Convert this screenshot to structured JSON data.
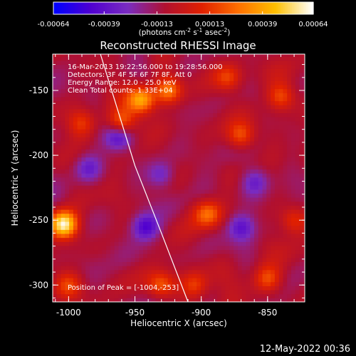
{
  "colorbar": {
    "tick_labels": [
      "-0.00064",
      "-0.00039",
      "-0.00013",
      "0.00013",
      "0.00039",
      "0.00064"
    ],
    "tick_values": [
      -0.00064,
      -0.00039,
      -0.00013,
      0.00013,
      0.00039,
      0.00064
    ],
    "range": [
      -0.00064,
      0.00064
    ],
    "unit_label": "(photons cm",
    "unit_exp1": "-2",
    "unit_mid": " s",
    "unit_exp2": "-1",
    "unit_tail": " asec",
    "unit_exp3": "-2",
    "unit_close": ")",
    "colors": [
      "#0000ff",
      "#5000d0",
      "#7a2cc0",
      "#b01030",
      "#e02000",
      "#ff7000",
      "#ffc000",
      "#ffffff"
    ]
  },
  "chart_data": {
    "type": "heatmap",
    "title": "Reconstructed RHESSI Image",
    "xlabel": "Heliocentric X (arcsec)",
    "ylabel": "Heliocentric Y (arcsec)",
    "xlim": [
      -1012,
      -822
    ],
    "ylim": [
      -313,
      -122
    ],
    "x_ticks": [
      -1000,
      -950,
      -900,
      -850
    ],
    "x_tick_labels": [
      "-1000",
      "-950",
      "-900",
      "-850"
    ],
    "y_ticks": [
      -300,
      -250,
      -200,
      -150
    ],
    "y_tick_labels": [
      "-300",
      "-250",
      "-200",
      "-150"
    ],
    "info_lines": [
      "16-Mar-2013 19:22:56.000 to 19:28:56.000",
      "Detectors: 3F 4F 5F 6F 7F 8F, Att 0",
      "Energy Range: 12.0 - 25.0 keV",
      "Clean    Total counts: 1.33E+04"
    ],
    "peak_text": "Position of Peak = [-1004,-253]",
    "peak": [
      -1004,
      -253
    ],
    "limb_points": [
      [
        -976,
        -122
      ],
      [
        -950,
        -208
      ],
      [
        -930,
        -260
      ],
      [
        -910,
        -313
      ]
    ],
    "hotspots": [
      {
        "x": -1004,
        "y": -253,
        "level": 1.0
      },
      {
        "x": -945,
        "y": -157,
        "level": 0.7
      },
      {
        "x": -925,
        "y": -150,
        "level": 0.6
      },
      {
        "x": -960,
        "y": -175,
        "level": 0.5
      },
      {
        "x": -930,
        "y": -300,
        "level": 0.45
      },
      {
        "x": -870,
        "y": -185,
        "level": 0.45
      },
      {
        "x": -840,
        "y": -155,
        "level": 0.4
      },
      {
        "x": -895,
        "y": -245,
        "level": 0.45
      },
      {
        "x": -850,
        "y": -295,
        "level": 0.4
      },
      {
        "x": -1000,
        "y": -300,
        "level": 0.35
      },
      {
        "x": -990,
        "y": -175,
        "level": 0.3
      },
      {
        "x": -830,
        "y": -250,
        "level": 0.35
      },
      {
        "x": -905,
        "y": -300,
        "level": 0.35
      },
      {
        "x": -880,
        "y": -140,
        "level": 0.35
      }
    ],
    "coldspots": [
      {
        "x": -962,
        "y": -185,
        "level": -0.45
      },
      {
        "x": -942,
        "y": -255,
        "level": -0.5
      },
      {
        "x": -870,
        "y": -255,
        "level": -0.4
      },
      {
        "x": -985,
        "y": -210,
        "level": -0.3
      },
      {
        "x": -930,
        "y": -215,
        "level": -0.35
      },
      {
        "x": -860,
        "y": -220,
        "level": -0.3
      }
    ]
  },
  "footer": {
    "timestamp": "12-May-2022 00:36"
  }
}
